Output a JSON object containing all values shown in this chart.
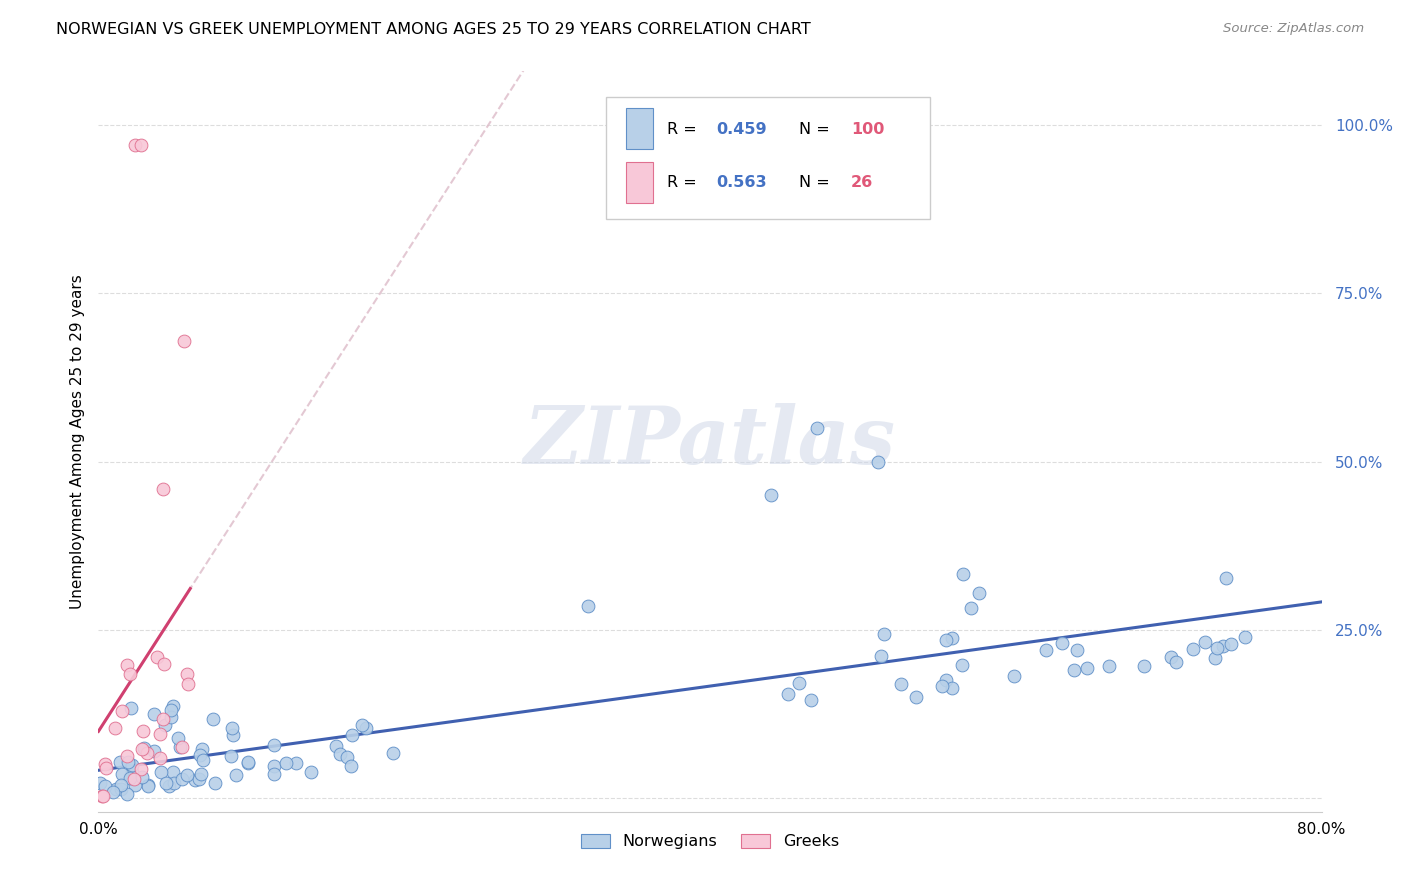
{
  "title": "NORWEGIAN VS GREEK UNEMPLOYMENT AMONG AGES 25 TO 29 YEARS CORRELATION CHART",
  "source": "Source: ZipAtlas.com",
  "ylabel": "Unemployment Among Ages 25 to 29 years",
  "xlim": [
    0,
    0.8
  ],
  "ylim": [
    -0.02,
    1.08
  ],
  "norwegian_R": 0.459,
  "norwegian_N": 100,
  "greek_R": 0.563,
  "greek_N": 26,
  "color_norwegian_fill": "#b8d0e8",
  "color_norwegian_edge": "#6090c8",
  "color_norwegian_line": "#4060b0",
  "color_greek_fill": "#f8c8d8",
  "color_greek_edge": "#e07090",
  "color_greek_line": "#d04070",
  "color_dashed": "#ddbbc8",
  "color_R": "#4472c4",
  "color_N": "#e05878",
  "background_color": "#ffffff",
  "grid_color": "#dddddd",
  "watermark": "ZIPatlas",
  "ytick_vals": [
    0.0,
    0.25,
    0.5,
    0.75,
    1.0
  ],
  "ytick_labels": [
    "",
    "25.0%",
    "50.0%",
    "75.0%",
    "100.0%"
  ]
}
